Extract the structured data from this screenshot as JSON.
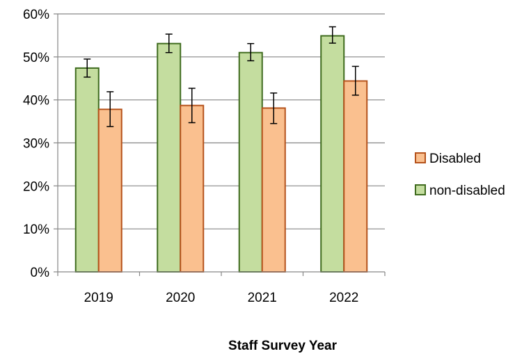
{
  "chart_data": {
    "type": "bar",
    "categories": [
      "2019",
      "2020",
      "2021",
      "2022"
    ],
    "series": [
      {
        "name": "non-disabled",
        "values": [
          47.4,
          53.1,
          51.0,
          54.9
        ],
        "error_low": [
          45.3,
          51.0,
          49.1,
          53.2
        ],
        "error_high": [
          49.5,
          55.3,
          53.1,
          57.0
        ],
        "fill": "#c4dd9f",
        "stroke": "#3f6b1e"
      },
      {
        "name": "Disabled",
        "values": [
          37.8,
          38.7,
          38.1,
          44.4
        ],
        "error_low": [
          33.8,
          34.7,
          34.5,
          41.1
        ],
        "error_high": [
          41.9,
          42.7,
          41.6,
          47.8
        ],
        "fill": "#fac08f",
        "stroke": "#b5521b"
      }
    ],
    "xlabel": "Staff Survey Year",
    "ylabel": "",
    "ylim": [
      0,
      60
    ],
    "y_ticks": [
      "0%",
      "10%",
      "20%",
      "30%",
      "40%",
      "50%",
      "60%"
    ],
    "grid": true,
    "legend": {
      "placement": "right",
      "order": [
        "Disabled",
        "non-disabled"
      ]
    }
  }
}
